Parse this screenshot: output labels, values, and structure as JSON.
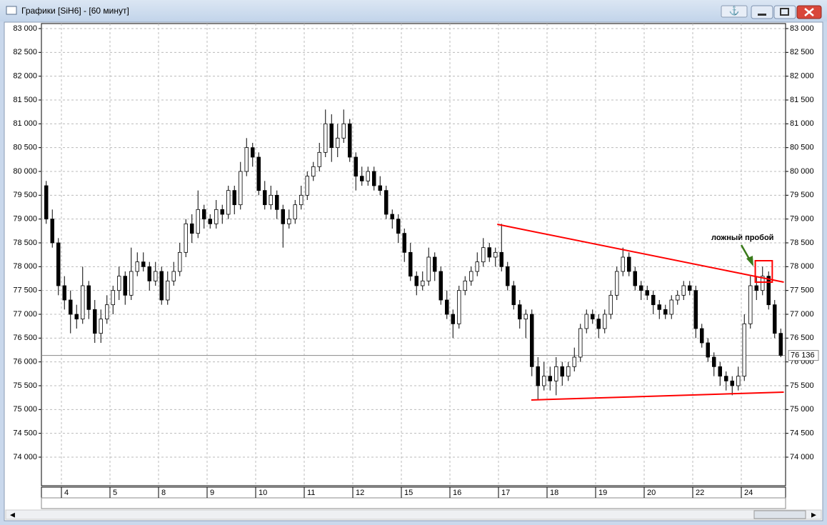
{
  "window": {
    "title": "Графики [SiH6] - [60 минут]"
  },
  "chart_data": {
    "type": "candlestick",
    "up_color": "#ffffff",
    "down_color": "#000000",
    "wick_color": "#000000",
    "grid": true,
    "ylim": [
      73400,
      83105
    ],
    "yticks": [
      {
        "value": 74000,
        "label": "74 000"
      },
      {
        "value": 74500,
        "label": "74 500"
      },
      {
        "value": 75000,
        "label": "75 000"
      },
      {
        "value": 75500,
        "label": "75 500"
      },
      {
        "value": 76000,
        "label": "76 000"
      },
      {
        "value": 76500,
        "label": "76 500"
      },
      {
        "value": 77000,
        "label": "77 000"
      },
      {
        "value": 77500,
        "label": "77 500"
      },
      {
        "value": 78000,
        "label": "78 000"
      },
      {
        "value": 78500,
        "label": "78 500"
      },
      {
        "value": 79000,
        "label": "79 000"
      },
      {
        "value": 79500,
        "label": "79 500"
      },
      {
        "value": 80000,
        "label": "80 000"
      },
      {
        "value": 80500,
        "label": "80 500"
      },
      {
        "value": 81000,
        "label": "81 000"
      },
      {
        "value": 81500,
        "label": "81 500"
      },
      {
        "value": 82000,
        "label": "82 000"
      },
      {
        "value": 82500,
        "label": "82 500"
      },
      {
        "value": 83000,
        "label": "83 000"
      }
    ],
    "xlim": [
      0,
      122
    ],
    "xticks": [
      {
        "value": 3,
        "label": "4"
      },
      {
        "value": 11,
        "label": "5"
      },
      {
        "value": 19,
        "label": "8"
      },
      {
        "value": 27,
        "label": "9"
      },
      {
        "value": 35,
        "label": "10"
      },
      {
        "value": 43,
        "label": "11"
      },
      {
        "value": 51,
        "label": "12"
      },
      {
        "value": 59,
        "label": "15"
      },
      {
        "value": 67,
        "label": "16"
      },
      {
        "value": 75,
        "label": "17"
      },
      {
        "value": 83,
        "label": "18"
      },
      {
        "value": 91,
        "label": "19"
      },
      {
        "value": 99,
        "label": "20"
      },
      {
        "value": 107,
        "label": "22"
      },
      {
        "value": 115,
        "label": "24"
      }
    ],
    "ohlc": [
      [
        79700,
        79800,
        78900,
        79000
      ],
      [
        79000,
        79200,
        78400,
        78500
      ],
      [
        78500,
        78600,
        77400,
        77600
      ],
      [
        77600,
        77800,
        77100,
        77300
      ],
      [
        77300,
        77500,
        76600,
        77000
      ],
      [
        77000,
        77200,
        76700,
        76900
      ],
      [
        76900,
        78000,
        76800,
        77600
      ],
      [
        77600,
        77700,
        76900,
        77100
      ],
      [
        77100,
        77300,
        76400,
        76600
      ],
      [
        76600,
        77100,
        76400,
        76900
      ],
      [
        76900,
        77400,
        76800,
        77200
      ],
      [
        77200,
        77600,
        77000,
        77500
      ],
      [
        77500,
        78000,
        77300,
        77800
      ],
      [
        77800,
        77900,
        77200,
        77400
      ],
      [
        77400,
        78400,
        77300,
        77900
      ],
      [
        77900,
        78300,
        77800,
        78100
      ],
      [
        78100,
        78300,
        77900,
        78000
      ],
      [
        78000,
        78100,
        77500,
        77700
      ],
      [
        77700,
        78100,
        77600,
        77900
      ],
      [
        77900,
        78000,
        77200,
        77300
      ],
      [
        77300,
        77900,
        77200,
        77700
      ],
      [
        77700,
        78100,
        77600,
        77900
      ],
      [
        77900,
        78500,
        77800,
        78300
      ],
      [
        78300,
        79000,
        78200,
        78900
      ],
      [
        78900,
        79100,
        78500,
        78700
      ],
      [
        78700,
        79600,
        78600,
        79200
      ],
      [
        79200,
        79300,
        78800,
        79000
      ],
      [
        79000,
        79100,
        78800,
        78900
      ],
      [
        78900,
        79400,
        78800,
        79200
      ],
      [
        79200,
        79300,
        78900,
        79100
      ],
      [
        79100,
        79700,
        79000,
        79600
      ],
      [
        79600,
        79700,
        79100,
        79300
      ],
      [
        79300,
        80200,
        79200,
        80000
      ],
      [
        80000,
        80700,
        79900,
        80500
      ],
      [
        80500,
        80600,
        80100,
        80300
      ],
      [
        80300,
        80400,
        79500,
        79600
      ],
      [
        79600,
        79800,
        79200,
        79300
      ],
      [
        79300,
        79700,
        79200,
        79500
      ],
      [
        79500,
        79600,
        79000,
        79200
      ],
      [
        79200,
        79300,
        78400,
        78900
      ],
      [
        78900,
        79200,
        78800,
        79000
      ],
      [
        79000,
        79400,
        78900,
        79300
      ],
      [
        79300,
        79700,
        79200,
        79500
      ],
      [
        79500,
        80000,
        79400,
        79900
      ],
      [
        79900,
        80200,
        79800,
        80100
      ],
      [
        80100,
        80600,
        80000,
        80400
      ],
      [
        80400,
        81300,
        80300,
        81000
      ],
      [
        81000,
        81200,
        80200,
        80500
      ],
      [
        80500,
        81000,
        80300,
        80700
      ],
      [
        80700,
        81300,
        80600,
        81000
      ],
      [
        81000,
        81100,
        80200,
        80300
      ],
      [
        80300,
        80400,
        79600,
        79900
      ],
      [
        79900,
        80100,
        79700,
        79800
      ],
      [
        79800,
        80100,
        79700,
        80000
      ],
      [
        80000,
        80100,
        79600,
        79700
      ],
      [
        79700,
        79900,
        79500,
        79600
      ],
      [
        79600,
        79700,
        79000,
        79100
      ],
      [
        79100,
        79200,
        78800,
        79000
      ],
      [
        79000,
        79100,
        78500,
        78700
      ],
      [
        78700,
        78800,
        78100,
        78300
      ],
      [
        78300,
        78500,
        77700,
        77800
      ],
      [
        77800,
        77900,
        77400,
        77600
      ],
      [
        77600,
        77900,
        77500,
        77700
      ],
      [
        77700,
        78400,
        77600,
        78200
      ],
      [
        78200,
        78300,
        77700,
        77900
      ],
      [
        77900,
        78000,
        77200,
        77300
      ],
      [
        77300,
        77500,
        76900,
        77000
      ],
      [
        77000,
        77100,
        76500,
        76800
      ],
      [
        76800,
        77600,
        76700,
        77500
      ],
      [
        77500,
        77800,
        77400,
        77700
      ],
      [
        77700,
        78000,
        77600,
        77900
      ],
      [
        77900,
        78300,
        77800,
        78100
      ],
      [
        78100,
        78600,
        78000,
        78400
      ],
      [
        78400,
        78500,
        78100,
        78200
      ],
      [
        78200,
        78400,
        78000,
        78300
      ],
      [
        78300,
        78900,
        77900,
        78000
      ],
      [
        78000,
        78100,
        77500,
        77600
      ],
      [
        77600,
        77700,
        77100,
        77200
      ],
      [
        77200,
        77300,
        76700,
        76900
      ],
      [
        76900,
        77100,
        76500,
        77000
      ],
      [
        77000,
        77100,
        75700,
        75900
      ],
      [
        75900,
        76100,
        75200,
        75500
      ],
      [
        75500,
        76000,
        75400,
        75700
      ],
      [
        75700,
        75900,
        75400,
        75600
      ],
      [
        75600,
        76100,
        75300,
        75900
      ],
      [
        75900,
        76000,
        75500,
        75700
      ],
      [
        75700,
        76000,
        75600,
        75900
      ],
      [
        75900,
        76300,
        75800,
        76100
      ],
      [
        76100,
        76800,
        76000,
        76700
      ],
      [
        76700,
        77100,
        76600,
        77000
      ],
      [
        77000,
        77100,
        76800,
        76900
      ],
      [
        76900,
        77000,
        76500,
        76700
      ],
      [
        76700,
        77100,
        76600,
        77000
      ],
      [
        77000,
        77500,
        76900,
        77400
      ],
      [
        77400,
        78000,
        77300,
        77900
      ],
      [
        77900,
        78400,
        77800,
        78200
      ],
      [
        78200,
        78300,
        77800,
        77900
      ],
      [
        77900,
        78000,
        77500,
        77600
      ],
      [
        77600,
        77700,
        77300,
        77500
      ],
      [
        77500,
        77600,
        77300,
        77400
      ],
      [
        77400,
        77500,
        77000,
        77200
      ],
      [
        77200,
        77300,
        76900,
        77100
      ],
      [
        77100,
        77200,
        76900,
        77000
      ],
      [
        77000,
        77400,
        76900,
        77300
      ],
      [
        77300,
        77500,
        77200,
        77400
      ],
      [
        77400,
        77700,
        77300,
        77600
      ],
      [
        77600,
        77700,
        77400,
        77500
      ],
      [
        77500,
        77600,
        76500,
        76700
      ],
      [
        76700,
        76800,
        76300,
        76400
      ],
      [
        76400,
        76500,
        76000,
        76100
      ],
      [
        76100,
        76200,
        75700,
        75900
      ],
      [
        75900,
        76000,
        75500,
        75700
      ],
      [
        75700,
        75800,
        75400,
        75600
      ],
      [
        75600,
        75700,
        75300,
        75500
      ],
      [
        75500,
        75900,
        75400,
        75700
      ],
      [
        75700,
        77000,
        75600,
        76800
      ],
      [
        76800,
        77800,
        76700,
        77600
      ],
      [
        77600,
        77800,
        77300,
        77500
      ],
      [
        77500,
        78000,
        77400,
        77800
      ],
      [
        77800,
        77900,
        77100,
        77200
      ],
      [
        77200,
        77300,
        76500,
        76600
      ],
      [
        76600,
        76700,
        76100,
        76136
      ]
    ],
    "last_price": {
      "value": 76136,
      "label": "76 136"
    },
    "trendlines": [
      {
        "color": "#ff0000",
        "points": [
          [
            74.8,
            78890
          ],
          [
            122,
            77675
          ]
        ]
      },
      {
        "color": "#ff0000",
        "points": [
          [
            80.4,
            75200
          ],
          [
            122,
            75365
          ]
        ]
      }
    ],
    "highlight_box": {
      "color": "#ff0000",
      "xlim": [
        117.3,
        120.1
      ],
      "ylim": [
        77675,
        78125
      ]
    },
    "annotation": {
      "text": "ложный пробой",
      "color": "#3a7a1a"
    }
  }
}
